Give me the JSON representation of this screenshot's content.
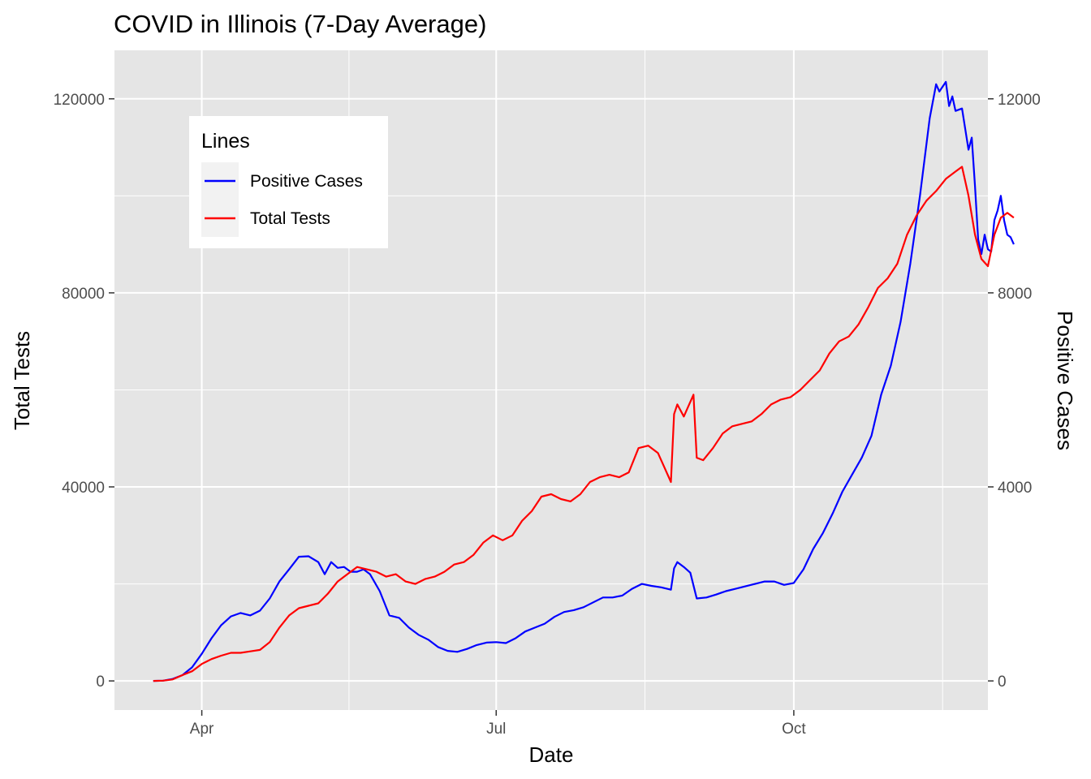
{
  "chart_data": {
    "type": "line",
    "title": "COVID in Illinois (7-Day Average)",
    "xlabel": "Date",
    "ylabel": "Total Tests",
    "y2label": "Positive Cases",
    "x_ticks": [
      "Apr",
      "Jul",
      "Oct"
    ],
    "x_tick_dates": [
      "2020-04-01",
      "2020-07-01",
      "2020-10-01"
    ],
    "xlim": [
      "2020-03-05",
      "2020-11-30"
    ],
    "ylim": [
      -6000,
      130000
    ],
    "y_ticks": [
      "0",
      "40000",
      "80000",
      "120000"
    ],
    "y2lim": [
      -600,
      13000
    ],
    "y2_ticks": [
      "0",
      "4000",
      "8000",
      "12000"
    ],
    "grid": true,
    "legend_title": "Lines",
    "legend_position": "top-left",
    "series": [
      {
        "name": "Positive Cases",
        "axis": "right",
        "color": "#0000ff",
        "points": [
          [
            "2020-03-17",
            0
          ],
          [
            "2020-03-20",
            5
          ],
          [
            "2020-03-23",
            40
          ],
          [
            "2020-03-26",
            120
          ],
          [
            "2020-03-29",
            280
          ],
          [
            "2020-04-01",
            560
          ],
          [
            "2020-04-04",
            880
          ],
          [
            "2020-04-07",
            1150
          ],
          [
            "2020-04-10",
            1330
          ],
          [
            "2020-04-13",
            1400
          ],
          [
            "2020-04-16",
            1350
          ],
          [
            "2020-04-19",
            1450
          ],
          [
            "2020-04-22",
            1700
          ],
          [
            "2020-04-25",
            2050
          ],
          [
            "2020-04-28",
            2300
          ],
          [
            "2020-05-01",
            2560
          ],
          [
            "2020-05-04",
            2570
          ],
          [
            "2020-05-07",
            2450
          ],
          [
            "2020-05-09",
            2200
          ],
          [
            "2020-05-11",
            2450
          ],
          [
            "2020-05-13",
            2330
          ],
          [
            "2020-05-15",
            2350
          ],
          [
            "2020-05-17",
            2250
          ],
          [
            "2020-05-19",
            2250
          ],
          [
            "2020-05-21",
            2300
          ],
          [
            "2020-05-23",
            2200
          ],
          [
            "2020-05-26",
            1850
          ],
          [
            "2020-05-29",
            1350
          ],
          [
            "2020-06-01",
            1300
          ],
          [
            "2020-06-04",
            1100
          ],
          [
            "2020-06-07",
            950
          ],
          [
            "2020-06-10",
            850
          ],
          [
            "2020-06-13",
            700
          ],
          [
            "2020-06-16",
            620
          ],
          [
            "2020-06-19",
            600
          ],
          [
            "2020-06-22",
            660
          ],
          [
            "2020-06-25",
            740
          ],
          [
            "2020-06-28",
            790
          ],
          [
            "2020-07-01",
            800
          ],
          [
            "2020-07-04",
            780
          ],
          [
            "2020-07-07",
            880
          ],
          [
            "2020-07-10",
            1020
          ],
          [
            "2020-07-13",
            1100
          ],
          [
            "2020-07-16",
            1180
          ],
          [
            "2020-07-19",
            1320
          ],
          [
            "2020-07-22",
            1420
          ],
          [
            "2020-07-25",
            1460
          ],
          [
            "2020-07-28",
            1520
          ],
          [
            "2020-07-31",
            1620
          ],
          [
            "2020-08-03",
            1720
          ],
          [
            "2020-08-06",
            1720
          ],
          [
            "2020-08-09",
            1760
          ],
          [
            "2020-08-12",
            1900
          ],
          [
            "2020-08-15",
            2000
          ],
          [
            "2020-08-18",
            1960
          ],
          [
            "2020-08-21",
            1930
          ],
          [
            "2020-08-24",
            1880
          ],
          [
            "2020-08-25",
            2320
          ],
          [
            "2020-08-26",
            2450
          ],
          [
            "2020-08-28",
            2350
          ],
          [
            "2020-08-30",
            2230
          ],
          [
            "2020-09-01",
            1700
          ],
          [
            "2020-09-04",
            1720
          ],
          [
            "2020-09-07",
            1780
          ],
          [
            "2020-09-10",
            1850
          ],
          [
            "2020-09-13",
            1900
          ],
          [
            "2020-09-16",
            1950
          ],
          [
            "2020-09-19",
            2000
          ],
          [
            "2020-09-22",
            2050
          ],
          [
            "2020-09-25",
            2050
          ],
          [
            "2020-09-28",
            1980
          ],
          [
            "2020-10-01",
            2020
          ],
          [
            "2020-10-04",
            2300
          ],
          [
            "2020-10-07",
            2720
          ],
          [
            "2020-10-10",
            3050
          ],
          [
            "2020-10-13",
            3450
          ],
          [
            "2020-10-16",
            3900
          ],
          [
            "2020-10-19",
            4250
          ],
          [
            "2020-10-22",
            4600
          ],
          [
            "2020-10-25",
            5050
          ],
          [
            "2020-10-28",
            5900
          ],
          [
            "2020-10-31",
            6500
          ],
          [
            "2020-11-03",
            7400
          ],
          [
            "2020-11-06",
            8600
          ],
          [
            "2020-11-09",
            10000
          ],
          [
            "2020-11-12",
            11600
          ],
          [
            "2020-11-14",
            12300
          ],
          [
            "2020-11-15",
            12150
          ],
          [
            "2020-11-17",
            12350
          ],
          [
            "2020-11-18",
            11850
          ],
          [
            "2020-11-19",
            12050
          ],
          [
            "2020-11-20",
            11750
          ],
          [
            "2020-11-22",
            11800
          ],
          [
            "2020-11-24",
            10950
          ],
          [
            "2020-11-25",
            11200
          ],
          [
            "2020-11-26",
            10200
          ],
          [
            "2020-11-27",
            9100
          ],
          [
            "2020-11-28",
            8800
          ],
          [
            "2020-11-29",
            9200
          ],
          [
            "2020-11-30",
            8900
          ],
          [
            "2020-12-01",
            8850
          ],
          [
            "2020-12-02",
            9500
          ],
          [
            "2020-12-03",
            9700
          ],
          [
            "2020-12-04",
            10000
          ],
          [
            "2020-12-05",
            9500
          ],
          [
            "2020-12-06",
            9200
          ],
          [
            "2020-12-07",
            9150
          ],
          [
            "2020-12-08",
            9000
          ]
        ]
      },
      {
        "name": "Total Tests",
        "axis": "left",
        "color": "#ff0000",
        "points": [
          [
            "2020-03-17",
            0
          ],
          [
            "2020-03-20",
            50
          ],
          [
            "2020-03-23",
            300
          ],
          [
            "2020-03-26",
            1200
          ],
          [
            "2020-03-29",
            2000
          ],
          [
            "2020-04-01",
            3500
          ],
          [
            "2020-04-04",
            4500
          ],
          [
            "2020-04-07",
            5200
          ],
          [
            "2020-04-10",
            5800
          ],
          [
            "2020-04-13",
            5800
          ],
          [
            "2020-04-16",
            6100
          ],
          [
            "2020-04-19",
            6400
          ],
          [
            "2020-04-22",
            8000
          ],
          [
            "2020-04-25",
            11000
          ],
          [
            "2020-04-28",
            13500
          ],
          [
            "2020-05-01",
            15000
          ],
          [
            "2020-05-04",
            15500
          ],
          [
            "2020-05-07",
            16000
          ],
          [
            "2020-05-10",
            18000
          ],
          [
            "2020-05-13",
            20500
          ],
          [
            "2020-05-16",
            22000
          ],
          [
            "2020-05-19",
            23500
          ],
          [
            "2020-05-22",
            23000
          ],
          [
            "2020-05-25",
            22500
          ],
          [
            "2020-05-28",
            21500
          ],
          [
            "2020-05-31",
            22000
          ],
          [
            "2020-06-03",
            20500
          ],
          [
            "2020-06-06",
            20000
          ],
          [
            "2020-06-09",
            21000
          ],
          [
            "2020-06-12",
            21500
          ],
          [
            "2020-06-15",
            22500
          ],
          [
            "2020-06-18",
            24000
          ],
          [
            "2020-06-21",
            24500
          ],
          [
            "2020-06-24",
            26000
          ],
          [
            "2020-06-27",
            28500
          ],
          [
            "2020-06-30",
            30000
          ],
          [
            "2020-07-03",
            29000
          ],
          [
            "2020-07-06",
            30000
          ],
          [
            "2020-07-09",
            33000
          ],
          [
            "2020-07-12",
            35000
          ],
          [
            "2020-07-15",
            38000
          ],
          [
            "2020-07-18",
            38500
          ],
          [
            "2020-07-21",
            37500
          ],
          [
            "2020-07-24",
            37000
          ],
          [
            "2020-07-27",
            38500
          ],
          [
            "2020-07-30",
            41000
          ],
          [
            "2020-08-02",
            42000
          ],
          [
            "2020-08-05",
            42500
          ],
          [
            "2020-08-08",
            42000
          ],
          [
            "2020-08-11",
            43000
          ],
          [
            "2020-08-14",
            48000
          ],
          [
            "2020-08-17",
            48500
          ],
          [
            "2020-08-20",
            47000
          ],
          [
            "2020-08-22",
            44000
          ],
          [
            "2020-08-24",
            41000
          ],
          [
            "2020-08-25",
            55000
          ],
          [
            "2020-08-26",
            57000
          ],
          [
            "2020-08-28",
            54500
          ],
          [
            "2020-08-31",
            59000
          ],
          [
            "2020-09-01",
            46000
          ],
          [
            "2020-09-03",
            45500
          ],
          [
            "2020-09-06",
            48000
          ],
          [
            "2020-09-09",
            51000
          ],
          [
            "2020-09-12",
            52500
          ],
          [
            "2020-09-15",
            53000
          ],
          [
            "2020-09-18",
            53500
          ],
          [
            "2020-09-21",
            55000
          ],
          [
            "2020-09-24",
            57000
          ],
          [
            "2020-09-27",
            58000
          ],
          [
            "2020-09-30",
            58500
          ],
          [
            "2020-10-03",
            60000
          ],
          [
            "2020-10-06",
            62000
          ],
          [
            "2020-10-09",
            64000
          ],
          [
            "2020-10-12",
            67500
          ],
          [
            "2020-10-15",
            70000
          ],
          [
            "2020-10-18",
            71000
          ],
          [
            "2020-10-21",
            73500
          ],
          [
            "2020-10-24",
            77000
          ],
          [
            "2020-10-27",
            81000
          ],
          [
            "2020-10-30",
            83000
          ],
          [
            "2020-11-02",
            86000
          ],
          [
            "2020-11-05",
            92000
          ],
          [
            "2020-11-08",
            96000
          ],
          [
            "2020-11-11",
            99000
          ],
          [
            "2020-11-14",
            101000
          ],
          [
            "2020-11-17",
            103500
          ],
          [
            "2020-11-20",
            105000
          ],
          [
            "2020-11-22",
            106000
          ],
          [
            "2020-11-24",
            100000
          ],
          [
            "2020-11-26",
            92000
          ],
          [
            "2020-11-28",
            87000
          ],
          [
            "2020-11-30",
            85500
          ],
          [
            "2020-12-02",
            92000
          ],
          [
            "2020-12-04",
            95500
          ],
          [
            "2020-12-06",
            96500
          ],
          [
            "2020-12-08",
            95500
          ]
        ]
      }
    ]
  }
}
